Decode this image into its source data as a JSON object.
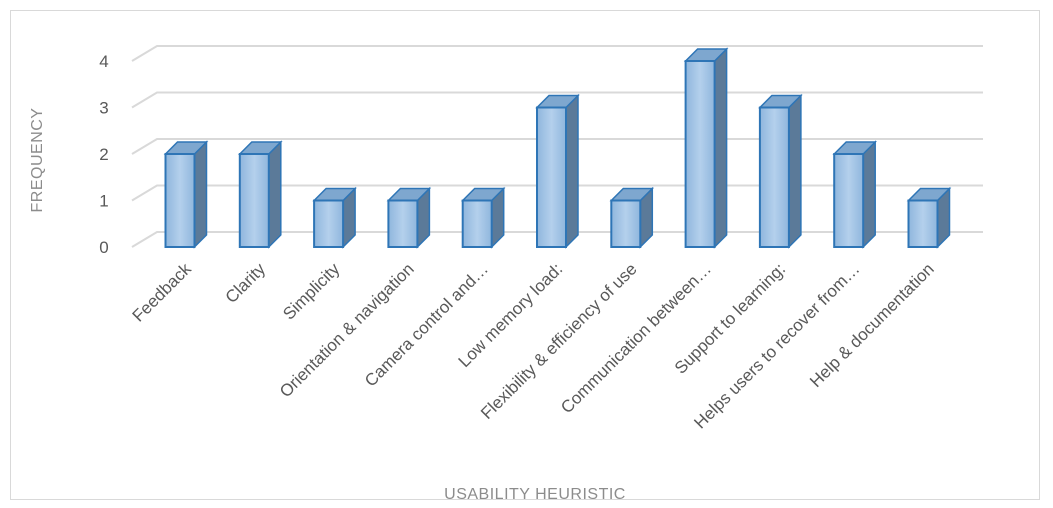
{
  "chart_data": {
    "type": "bar",
    "style": "3d-clustered-column",
    "title": "",
    "xlabel": "USABILITY HEURISTIC",
    "ylabel": "FREQUENCY",
    "ylim": [
      0,
      4
    ],
    "yticks": [
      0,
      1,
      2,
      3,
      4
    ],
    "grid": true,
    "legend": "none",
    "categories": [
      "Feedback",
      "Clarity",
      "Simplicity",
      "Orientation & navigation",
      "Camera control and…",
      "Low memory load:",
      "Flexibility & efficiency of use",
      "Communication between…",
      "Support to learning:",
      "Helps users to recover from…",
      "Help & documentation"
    ],
    "values": [
      2,
      2,
      1,
      1,
      1,
      3,
      1,
      4,
      3,
      2,
      1
    ],
    "colors": {
      "bar_front": "#9dc3e6",
      "bar_front_light": "#bdd7ee",
      "bar_side": "#5b7a99",
      "bar_top": "#7ea7cf",
      "bar_edge": "#2e75b6",
      "grid": "#d9d9d9"
    }
  }
}
